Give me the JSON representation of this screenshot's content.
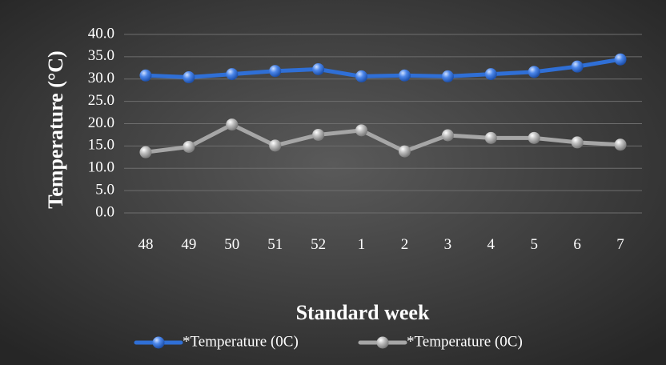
{
  "chart_data": {
    "type": "line",
    "title": "",
    "xlabel": "Standard week",
    "ylabel": "Temperature (°C)",
    "categories": [
      "48",
      "49",
      "50",
      "51",
      "52",
      "1",
      "2",
      "3",
      "4",
      "5",
      "6",
      "7"
    ],
    "yticks": [
      "0.0",
      "5.0",
      "10.0",
      "15.0",
      "20.0",
      "25.0",
      "30.0",
      "35.0",
      "40.0"
    ],
    "ylim": [
      0,
      40
    ],
    "grid": true,
    "legend_position": "bottom",
    "series": [
      {
        "name": "*Temperature (0C)",
        "color": "#2f6fd6",
        "values": [
          30.8,
          30.4,
          31.1,
          31.8,
          32.2,
          30.6,
          30.8,
          30.6,
          31.1,
          31.6,
          32.8,
          34.4
        ]
      },
      {
        "name": "*Temperature (0C)",
        "color": "#a6a6a6",
        "values": [
          13.6,
          14.8,
          19.8,
          15.1,
          17.5,
          18.5,
          13.8,
          17.4,
          16.8,
          16.8,
          15.8,
          15.3
        ]
      }
    ],
    "colors": {
      "background_center": "#5a5a5a",
      "background_edge": "#262626",
      "text": "#ffffff",
      "gridline": "#6e6e6e"
    }
  }
}
